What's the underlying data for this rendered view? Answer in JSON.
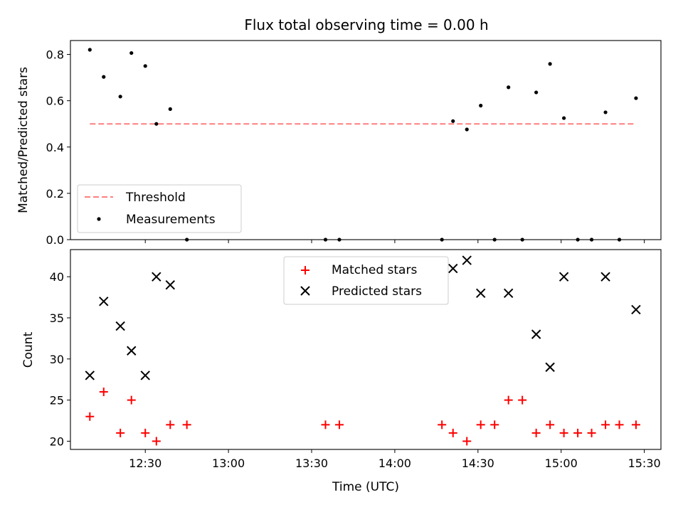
{
  "chart_data": [
    {
      "type": "scatter",
      "title": "Flux total observing time = 0.00 h",
      "xlabel": "",
      "ylabel": "Matched/Predicted stars",
      "xlim": [
        "12:03",
        "15:36"
      ],
      "ylim": [
        0,
        0.86
      ],
      "yticks": [
        0.0,
        0.2,
        0.4,
        0.6,
        0.8
      ],
      "ytick_labels": [
        "0.0",
        "0.2",
        "0.4",
        "0.6",
        "0.8"
      ],
      "xticks": [
        "12:30",
        "13:00",
        "13:30",
        "14:00",
        "14:30",
        "15:00",
        "15:30"
      ],
      "legend": {
        "placement": "lower-left",
        "entries": [
          "Threshold",
          "Measurements"
        ]
      },
      "series": [
        {
          "name": "Threshold",
          "kind": "dashed-line",
          "color": "#ff7f7f",
          "points": [
            {
              "x": "12:10",
              "y": 0.5
            },
            {
              "x": "15:27",
              "y": 0.5
            }
          ]
        },
        {
          "name": "Measurements",
          "kind": "points",
          "color": "#000000",
          "points": [
            {
              "x": "12:10",
              "y": 0.82
            },
            {
              "x": "12:15",
              "y": 0.703
            },
            {
              "x": "12:21",
              "y": 0.618
            },
            {
              "x": "12:25",
              "y": 0.806
            },
            {
              "x": "12:30",
              "y": 0.75
            },
            {
              "x": "12:34",
              "y": 0.5
            },
            {
              "x": "12:39",
              "y": 0.564
            },
            {
              "x": "12:45",
              "y": 0
            },
            {
              "x": "13:35",
              "y": 0
            },
            {
              "x": "13:40",
              "y": 0
            },
            {
              "x": "14:17",
              "y": 0
            },
            {
              "x": "14:21",
              "y": 0.512
            },
            {
              "x": "14:26",
              "y": 0.476
            },
            {
              "x": "14:31",
              "y": 0.579
            },
            {
              "x": "14:36",
              "y": 0
            },
            {
              "x": "14:41",
              "y": 0.658
            },
            {
              "x": "14:46",
              "y": 0
            },
            {
              "x": "14:51",
              "y": 0.636
            },
            {
              "x": "14:56",
              "y": 0.759
            },
            {
              "x": "15:01",
              "y": 0.525
            },
            {
              "x": "15:06",
              "y": 0
            },
            {
              "x": "15:11",
              "y": 0
            },
            {
              "x": "15:16",
              "y": 0.55
            },
            {
              "x": "15:21",
              "y": 0
            },
            {
              "x": "15:27",
              "y": 0.611
            }
          ]
        }
      ]
    },
    {
      "type": "scatter",
      "title": "",
      "xlabel": "Time (UTC)",
      "ylabel": "Count",
      "xlim": [
        "12:03",
        "15:36"
      ],
      "ylim": [
        19,
        43.3
      ],
      "yticks": [
        20,
        25,
        30,
        35,
        40
      ],
      "ytick_labels": [
        "20",
        "25",
        "30",
        "35",
        "40"
      ],
      "xticks": [
        "12:30",
        "13:00",
        "13:30",
        "14:00",
        "14:30",
        "15:00",
        "15:30"
      ],
      "legend": {
        "placement": "upper-center",
        "entries": [
          "Matched stars",
          "Predicted stars"
        ]
      },
      "series": [
        {
          "name": "Matched stars",
          "marker": "plus",
          "color": "#ff0000",
          "points": [
            {
              "x": "12:10",
              "y": 23
            },
            {
              "x": "12:15",
              "y": 26
            },
            {
              "x": "12:21",
              "y": 21
            },
            {
              "x": "12:25",
              "y": 25
            },
            {
              "x": "12:30",
              "y": 21
            },
            {
              "x": "12:34",
              "y": 20
            },
            {
              "x": "12:39",
              "y": 22
            },
            {
              "x": "12:45",
              "y": 22
            },
            {
              "x": "13:35",
              "y": 22
            },
            {
              "x": "13:40",
              "y": 22
            },
            {
              "x": "14:17",
              "y": 22
            },
            {
              "x": "14:21",
              "y": 21
            },
            {
              "x": "14:26",
              "y": 20
            },
            {
              "x": "14:31",
              "y": 22
            },
            {
              "x": "14:36",
              "y": 22
            },
            {
              "x": "14:41",
              "y": 25
            },
            {
              "x": "14:46",
              "y": 25
            },
            {
              "x": "14:51",
              "y": 21
            },
            {
              "x": "14:56",
              "y": 22
            },
            {
              "x": "15:01",
              "y": 21
            },
            {
              "x": "15:06",
              "y": 21
            },
            {
              "x": "15:11",
              "y": 21
            },
            {
              "x": "15:16",
              "y": 22
            },
            {
              "x": "15:21",
              "y": 22
            },
            {
              "x": "15:27",
              "y": 22
            }
          ]
        },
        {
          "name": "Predicted stars",
          "marker": "x",
          "color": "#000000",
          "points": [
            {
              "x": "12:10",
              "y": 28
            },
            {
              "x": "12:15",
              "y": 37
            },
            {
              "x": "12:21",
              "y": 34
            },
            {
              "x": "12:25",
              "y": 31
            },
            {
              "x": "12:30",
              "y": 28
            },
            {
              "x": "12:34",
              "y": 40
            },
            {
              "x": "12:39",
              "y": 39
            },
            {
              "x": "14:21",
              "y": 41
            },
            {
              "x": "14:26",
              "y": 42
            },
            {
              "x": "14:31",
              "y": 38
            },
            {
              "x": "14:41",
              "y": 38
            },
            {
              "x": "14:51",
              "y": 33
            },
            {
              "x": "14:56",
              "y": 29
            },
            {
              "x": "15:01",
              "y": 40
            },
            {
              "x": "15:16",
              "y": 40
            },
            {
              "x": "15:27",
              "y": 36
            }
          ]
        }
      ]
    }
  ]
}
